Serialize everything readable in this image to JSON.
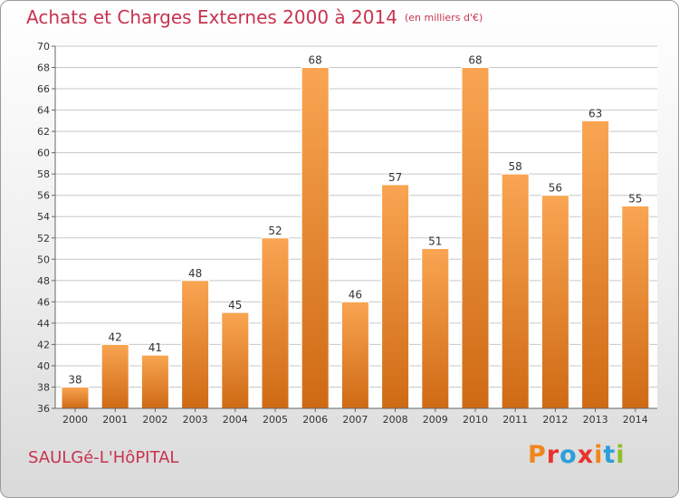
{
  "header": {
    "title": "Achats et Charges Externes 2000 à 2014",
    "unit": "(en milliers d'€)"
  },
  "footer": {
    "commune": "SAULGé-L'HôPITAL",
    "logo_text": "Proxiti"
  },
  "colors": {
    "title": "#c8334e",
    "bar_top": "#f9a552",
    "bar_bottom": "#cf6a14",
    "grid": "#c8c8c8",
    "logo_letters": [
      "#f0861c",
      "#e8342c",
      "#2c9fd8",
      "#e8342c",
      "#f0861c",
      "#2c9fd8",
      "#8cbf26"
    ]
  },
  "chart_data": {
    "type": "bar",
    "title": "Achats et Charges Externes 2000 à 2014",
    "categories": [
      "2000",
      "2001",
      "2002",
      "2003",
      "2004",
      "2005",
      "2006",
      "2007",
      "2008",
      "2009",
      "2010",
      "2011",
      "2012",
      "2013",
      "2014"
    ],
    "values": [
      38,
      42,
      41,
      48,
      45,
      52,
      68,
      46,
      57,
      51,
      68,
      58,
      56,
      63,
      55
    ],
    "ylim": [
      36,
      70
    ],
    "yticks": [
      36,
      38,
      40,
      42,
      44,
      46,
      48,
      50,
      52,
      54,
      56,
      58,
      60,
      62,
      64,
      66,
      68,
      70
    ],
    "grid": true
  }
}
